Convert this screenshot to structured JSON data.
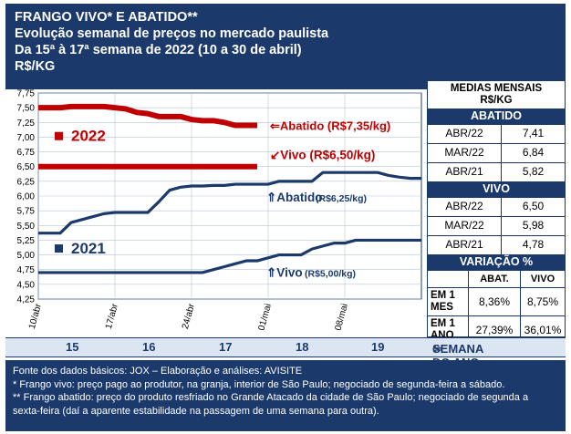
{
  "header": {
    "line1": "FRANGO VIVO* E ABATIDO**",
    "line2": "Evolução semanal de preços no mercado paulista",
    "line3": "Da 15ª à 17ª semana de 2022 (10 a 30 de abril)",
    "line4": "R$/KG"
  },
  "chart_data": {
    "type": "line",
    "title": "",
    "ylim": [
      4.25,
      7.75
    ],
    "y_ticks": [
      "7,75",
      "7,50",
      "7,25",
      "7,00",
      "6,75",
      "6,50",
      "6,25",
      "6,00",
      "5,75",
      "5,50",
      "5,25",
      "5,00",
      "4,75",
      "4,50",
      "4,25"
    ],
    "x_ticks": [
      "10/abr",
      "17/abr",
      "24/abr",
      "01/mai",
      "08/mai"
    ],
    "x_range_days": [
      0,
      35
    ],
    "series": [
      {
        "name": "Abatido 2022",
        "year": 2022,
        "color": "#c00000",
        "x": [
          0,
          1,
          2,
          3,
          4,
          5,
          6,
          7,
          8,
          9,
          10,
          11,
          12,
          13,
          14,
          15,
          16,
          17,
          18,
          19,
          20
        ],
        "values": [
          7.5,
          7.5,
          7.5,
          7.52,
          7.52,
          7.52,
          7.52,
          7.5,
          7.48,
          7.42,
          7.4,
          7.35,
          7.35,
          7.35,
          7.3,
          7.28,
          7.28,
          7.25,
          7.2,
          7.2,
          7.2
        ]
      },
      {
        "name": "Vivo 2022",
        "year": 2022,
        "color": "#c00000",
        "x": [
          0,
          20
        ],
        "values": [
          6.5,
          6.5
        ]
      },
      {
        "name": "Abatido 2021",
        "year": 2021,
        "color": "#1b3a6b",
        "x": [
          0,
          2,
          3,
          4,
          5,
          6,
          7,
          8,
          9,
          10,
          11,
          12,
          13,
          14,
          15,
          16,
          17,
          18,
          19,
          20,
          21,
          22,
          23,
          24,
          25,
          26,
          27,
          28,
          29,
          30,
          31,
          32,
          33,
          34,
          35
        ],
        "values": [
          5.37,
          5.37,
          5.55,
          5.6,
          5.65,
          5.7,
          5.72,
          5.72,
          5.72,
          5.72,
          5.9,
          6.1,
          6.15,
          6.17,
          6.17,
          6.18,
          6.18,
          6.2,
          6.2,
          6.2,
          6.2,
          6.25,
          6.25,
          6.25,
          6.25,
          6.4,
          6.4,
          6.4,
          6.4,
          6.4,
          6.4,
          6.35,
          6.32,
          6.3,
          6.3
        ]
      },
      {
        "name": "Vivo 2021",
        "year": 2021,
        "color": "#1b3a6b",
        "x": [
          0,
          15,
          16,
          17,
          18,
          19,
          20,
          21,
          22,
          23,
          24,
          25,
          26,
          27,
          28,
          29,
          35
        ],
        "values": [
          4.7,
          4.7,
          4.75,
          4.8,
          4.85,
          4.9,
          4.9,
          4.95,
          5.0,
          5.0,
          5.0,
          5.1,
          5.15,
          5.2,
          5.2,
          5.25,
          5.25
        ]
      }
    ],
    "annotations": {
      "abatido_2022": "Abatido (R$7,35/kg)",
      "vivo_2022": "Vivo (R$6,50/kg)",
      "abatido_2021_main": "Abatido",
      "abatido_2021_price": "(R$6,25/kg)",
      "vivo_2021_main": "Vivo",
      "vivo_2021_price": "(R$5,00/kg)",
      "year_2022": "2022",
      "year_2021": "2021"
    }
  },
  "medias": {
    "title1": "MEDIAS MENSAIS",
    "title2": "R$/KG",
    "abatido_label": "ABATIDO",
    "abatido": [
      {
        "period": "ABR/22",
        "value": "7,41"
      },
      {
        "period": "MAR/22",
        "value": "6,84"
      },
      {
        "period": "ABR/21",
        "value": "5,82"
      }
    ],
    "vivo_label": "VIVO",
    "vivo": [
      {
        "period": "ABR/22",
        "value": "6,50"
      },
      {
        "period": "MAR/22",
        "value": "5,98"
      },
      {
        "period": "ABR/21",
        "value": "4,78"
      }
    ],
    "variacao_label": "VARIAÇÃO %",
    "col_abat": "ABAT.",
    "col_vivo": "VIVO",
    "rows": [
      {
        "label1": "EM 1",
        "label2": "MES",
        "abat": "8,36%",
        "vivo": "8,75%"
      },
      {
        "label1": "EM 1",
        "label2": "ANO",
        "abat": "27,39%",
        "vivo": "36,01%"
      }
    ]
  },
  "weeks": {
    "labels": [
      "15",
      "16",
      "17",
      "18",
      "19"
    ],
    "arrow_label": "SEMANA DO ANO"
  },
  "footer": {
    "line1": "Fonte dos dados básicos: JOX – Elaboração e análises: AVISITE",
    "line2": "*  Frango vivo: preço pago ao produtor, na granja, interior de São Paulo; negociado de segunda-feira a sábado.",
    "line3": "** Frango abatido: preço do produto resfriado no Grande Atacado da cidade de São Paulo; negociado de segunda a sexta-feira (daí a aparente estabilidade na passagem de uma semana para outra)."
  }
}
